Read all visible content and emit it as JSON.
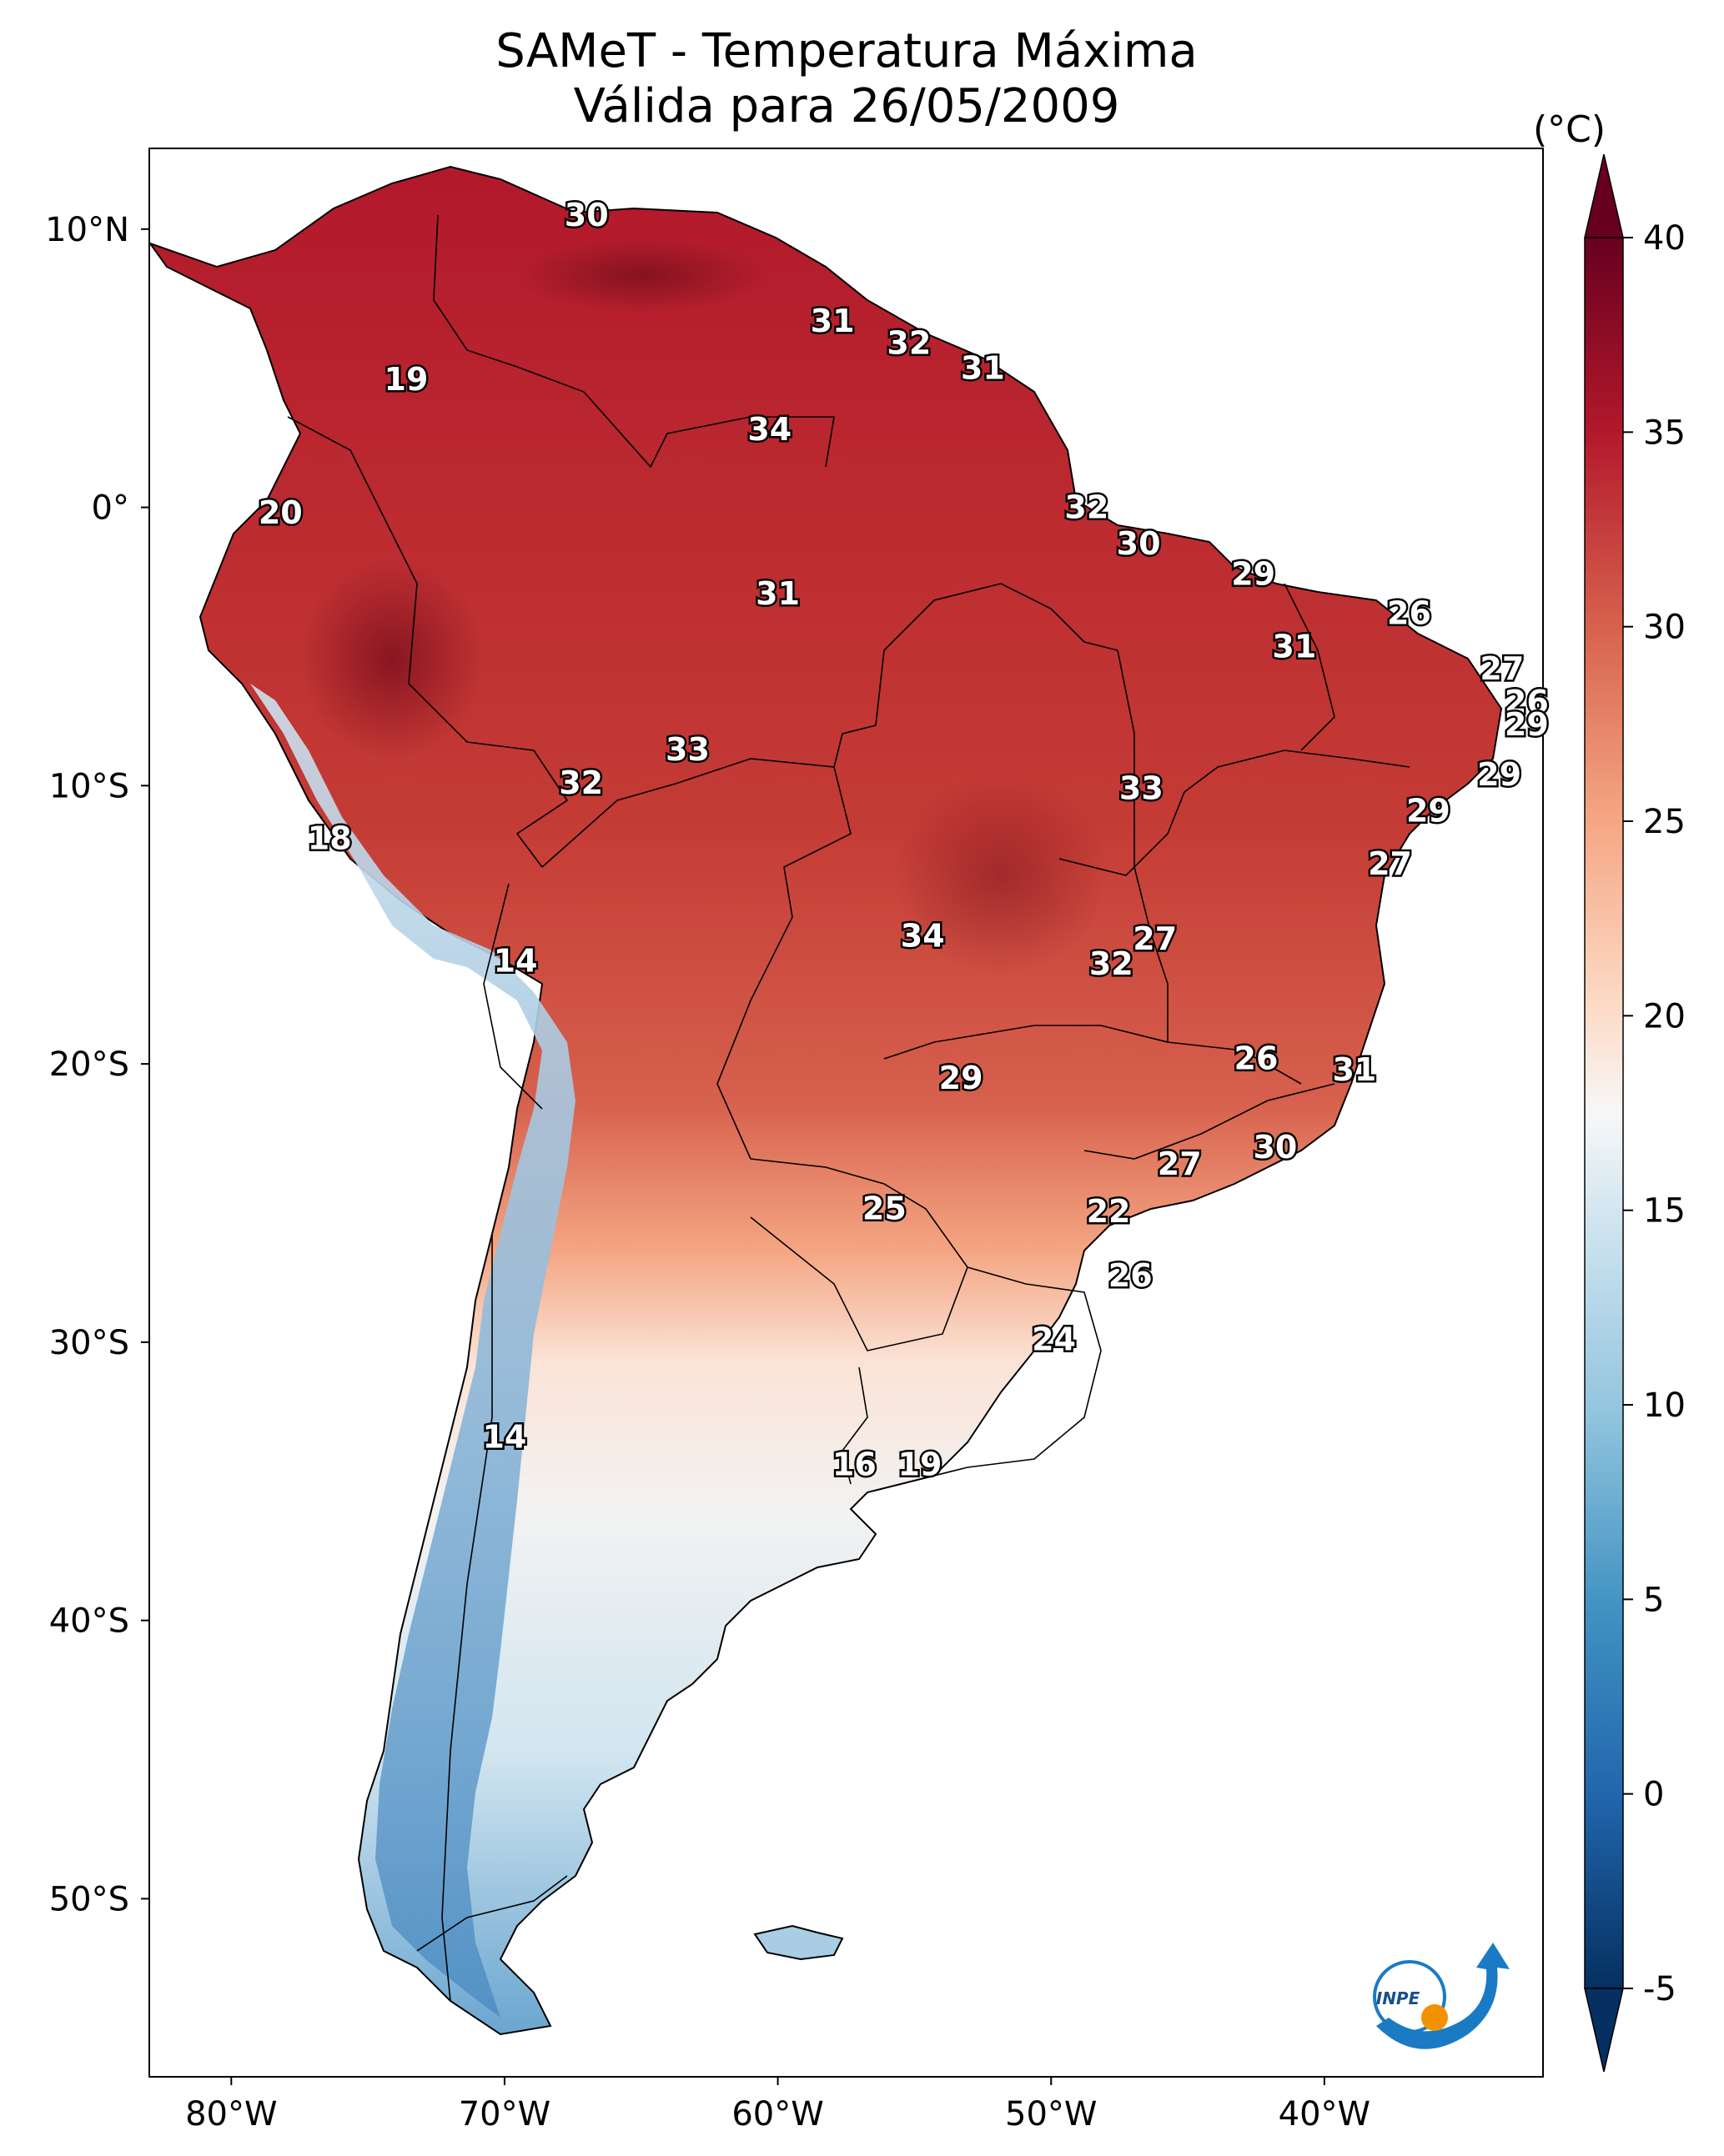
{
  "title": {
    "line1": "SAMeT - Temperatura Máxima",
    "line2": "Válida para 26/05/2009"
  },
  "lat_ticks": [
    "10°N",
    "0°",
    "10°S",
    "20°S",
    "30°S",
    "40°S",
    "50°S"
  ],
  "lon_ticks": [
    "80°W",
    "70°W",
    "60°W",
    "50°W",
    "40°W"
  ],
  "colorbar": {
    "unit": "(°C)",
    "ticks": [
      "40",
      "35",
      "30",
      "25",
      "20",
      "15",
      "10",
      "5",
      "0",
      "-5"
    ],
    "min": -5,
    "max": 40
  },
  "station_labels": [
    {
      "text": "30",
      "lon": -67.0,
      "lat": 10.5
    },
    {
      "text": "31",
      "lon": -58.0,
      "lat": 6.7
    },
    {
      "text": "32",
      "lon": -55.2,
      "lat": 5.9
    },
    {
      "text": "31",
      "lon": -52.5,
      "lat": 5.0
    },
    {
      "text": "19",
      "lon": -73.6,
      "lat": 4.6
    },
    {
      "text": "34",
      "lon": -60.3,
      "lat": 2.8
    },
    {
      "text": "20",
      "lon": -78.2,
      "lat": -0.2
    },
    {
      "text": "32",
      "lon": -48.7,
      "lat": 0.0
    },
    {
      "text": "30",
      "lon": -46.8,
      "lat": -1.3
    },
    {
      "text": "29",
      "lon": -42.6,
      "lat": -2.4
    },
    {
      "text": "31",
      "lon": -60.0,
      "lat": -3.1
    },
    {
      "text": "26",
      "lon": -36.9,
      "lat": -3.8
    },
    {
      "text": "31",
      "lon": -41.1,
      "lat": -5.0
    },
    {
      "text": "27",
      "lon": -33.5,
      "lat": -5.8
    },
    {
      "text": "26",
      "lon": -32.6,
      "lat": -7.0
    },
    {
      "text": "29",
      "lon": -32.6,
      "lat": -7.8
    },
    {
      "text": "33",
      "lon": -63.3,
      "lat": -8.7
    },
    {
      "text": "32",
      "lon": -67.2,
      "lat": -9.9
    },
    {
      "text": "33",
      "lon": -46.7,
      "lat": -10.1
    },
    {
      "text": "29",
      "lon": -33.6,
      "lat": -9.6
    },
    {
      "text": "29",
      "lon": -36.2,
      "lat": -10.9
    },
    {
      "text": "18",
      "lon": -76.4,
      "lat": -11.9
    },
    {
      "text": "27",
      "lon": -37.6,
      "lat": -12.8
    },
    {
      "text": "34",
      "lon": -54.7,
      "lat": -15.4
    },
    {
      "text": "27",
      "lon": -46.2,
      "lat": -15.5
    },
    {
      "text": "32",
      "lon": -47.8,
      "lat": -16.4
    },
    {
      "text": "14",
      "lon": -69.6,
      "lat": -16.3
    },
    {
      "text": "26",
      "lon": -42.5,
      "lat": -19.8
    },
    {
      "text": "31",
      "lon": -38.9,
      "lat": -20.2
    },
    {
      "text": "29",
      "lon": -53.3,
      "lat": -20.5
    },
    {
      "text": "30",
      "lon": -41.8,
      "lat": -23.0
    },
    {
      "text": "27",
      "lon": -45.3,
      "lat": -23.6
    },
    {
      "text": "25",
      "lon": -56.1,
      "lat": -25.2
    },
    {
      "text": "22",
      "lon": -47.9,
      "lat": -25.3
    },
    {
      "text": "26",
      "lon": -47.1,
      "lat": -27.6
    },
    {
      "text": "24",
      "lon": -49.9,
      "lat": -29.9
    },
    {
      "text": "14",
      "lon": -70.0,
      "lat": -33.4
    },
    {
      "text": "16",
      "lon": -57.2,
      "lat": -34.4
    },
    {
      "text": "19",
      "lon": -54.8,
      "lat": -34.4
    }
  ],
  "logo": {
    "text": "INPE"
  },
  "colors": {
    "hot": "#9a1b1e",
    "warm": "#d6604d",
    "mild": "#f4a582",
    "neutral": "#f7f7f7",
    "cool": "#92c5de",
    "cold": "#2166ac",
    "logo_blue": "#1a7bc4",
    "logo_orange": "#f39200"
  }
}
